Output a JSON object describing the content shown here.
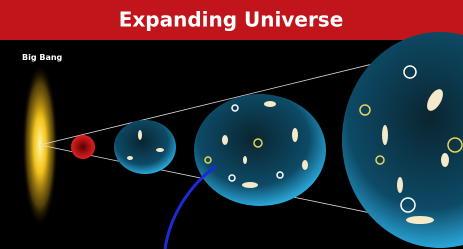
{
  "header": {
    "title": "Expanding Universe"
  },
  "labels": {
    "big_bang": "Big Bang"
  }
}
